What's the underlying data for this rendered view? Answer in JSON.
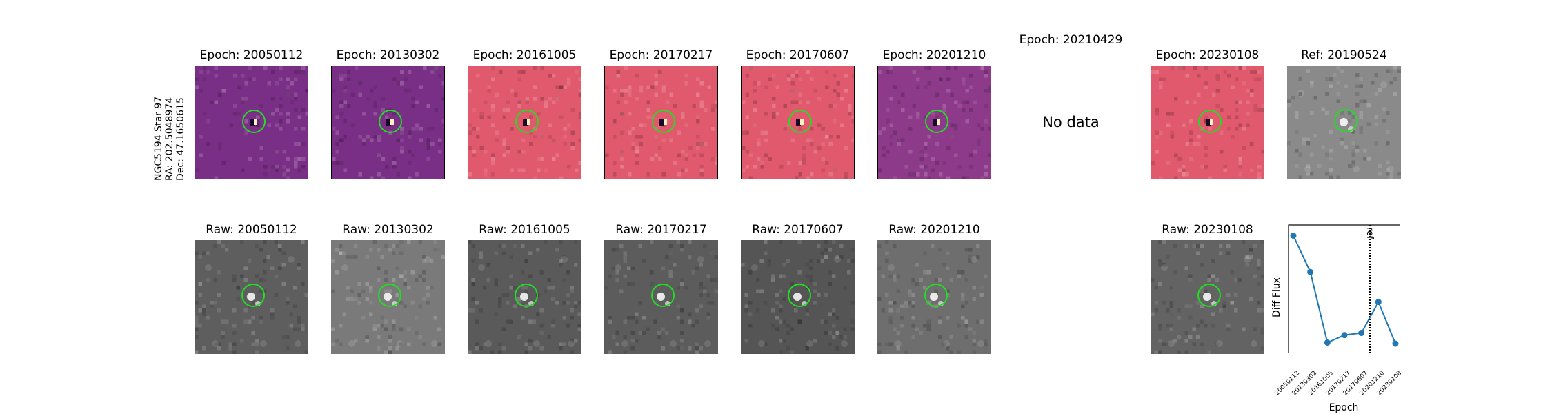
{
  "side_label": {
    "line1": "NGC5194 Star 97",
    "line2": "RA: 202.5048974",
    "line3": "Dec: 47.1650615"
  },
  "diff_panels": [
    {
      "title": "Epoch: 20050112",
      "colormap": "magma-dark",
      "has_data": true
    },
    {
      "title": "Epoch: 20130302",
      "colormap": "magma-dark",
      "has_data": true
    },
    {
      "title": "Epoch: 20161005",
      "colormap": "magma-bright",
      "has_data": true
    },
    {
      "title": "Epoch: 20170217",
      "colormap": "magma-bright",
      "has_data": true
    },
    {
      "title": "Epoch: 20170607",
      "colormap": "magma-bright",
      "has_data": true
    },
    {
      "title": "Epoch: 20201210",
      "colormap": "magma-mid",
      "has_data": true
    },
    {
      "title": "Epoch: 20210429",
      "colormap": "none",
      "has_data": false,
      "message": "No data"
    },
    {
      "title": "Epoch: 20230108",
      "colormap": "magma-bright",
      "has_data": true
    },
    {
      "title": "Ref: 20190524",
      "colormap": "gray",
      "has_data": true
    }
  ],
  "raw_panels": [
    {
      "title": "Raw: 20050112",
      "shade": "#5e5e5e"
    },
    {
      "title": "Raw: 20130302",
      "shade": "#7a7a7a"
    },
    {
      "title": "Raw: 20161005",
      "shade": "#5a5a5a"
    },
    {
      "title": "Raw: 20170217",
      "shade": "#5c5c5c"
    },
    {
      "title": "Raw: 20170607",
      "shade": "#555555"
    },
    {
      "title": "Raw: 20201210",
      "shade": "#6e6e6e"
    },
    {
      "title": "Raw: 20230108",
      "shade": "#636363"
    }
  ],
  "colors": {
    "circle": "#22dd22",
    "line": "#1f77b4",
    "magma_dark": "#7a2f86",
    "magma_mid": "#8d3a8a",
    "magma_bright": "#e0596c",
    "ref_gray": "#8a8a8a"
  },
  "chart_data": {
    "type": "line",
    "xlabel": "Epoch",
    "ylabel": "Diff Flux",
    "categories": [
      "20050112",
      "20130302",
      "20161005",
      "20170217",
      "20170607",
      "20201210",
      "20230108"
    ],
    "series": [
      {
        "values": [
          1.0,
          0.66,
          0.0,
          0.07,
          0.09,
          0.38,
          -0.01
        ]
      }
    ],
    "reference_line": {
      "label": "ref",
      "position_between": [
        "20170607",
        "20201210"
      ],
      "style": "dotted"
    },
    "ylim": [
      -0.1,
      1.1
    ],
    "grid": false
  }
}
